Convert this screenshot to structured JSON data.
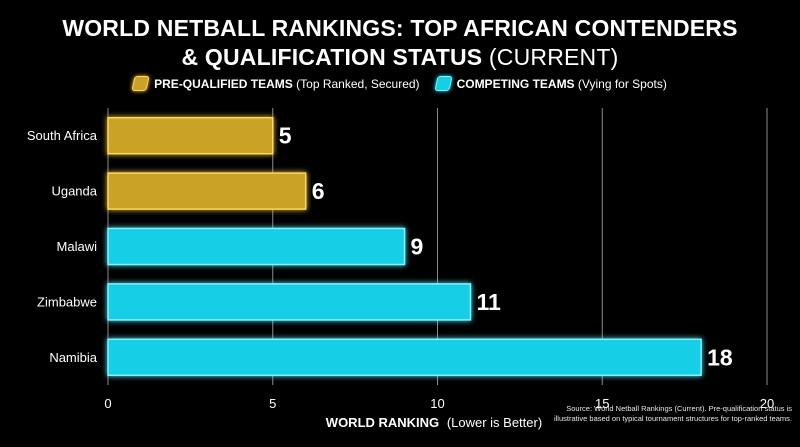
{
  "title_line1": "WORLD NETBALL RANKINGS: TOP AFRICAN CONTENDERS",
  "title_line2_bold": "& QUALIFICATION STATUS",
  "title_line2_light": "(CURRENT)",
  "legend": {
    "prequalified_bold": "PRE-QUALIFIED TEAMS",
    "prequalified_light": "(Top Ranked, Secured)",
    "competing_bold": "COMPETING TEAMS",
    "competing_light": "(Vying for Spots)"
  },
  "colors": {
    "prequalified": "#c9a227",
    "prequalified_edge": "#ffd75a",
    "competing": "#14cfe6",
    "competing_edge": "#7ff3ff",
    "grid": "#8a8a8a"
  },
  "source_note": "Source: World Netball Rankings (Current). Pre-qualification status is illustrative based on typical tournament structures for top-ranked teams.",
  "chart_data": {
    "type": "bar",
    "orientation": "horizontal",
    "categories": [
      "South Africa",
      "Uganda",
      "Malawi",
      "Zimbabwe",
      "Namibia"
    ],
    "values": [
      5,
      6,
      9,
      11,
      18
    ],
    "status": [
      "prequalified",
      "prequalified",
      "competing",
      "competing",
      "competing"
    ],
    "xlabel_bold": "WORLD RANKING",
    "xlabel_light": "(Lower is Better)",
    "xlim": [
      0,
      20
    ],
    "xticks": [
      0,
      5,
      10,
      15,
      20
    ],
    "grid": true,
    "legend_position": "top"
  }
}
